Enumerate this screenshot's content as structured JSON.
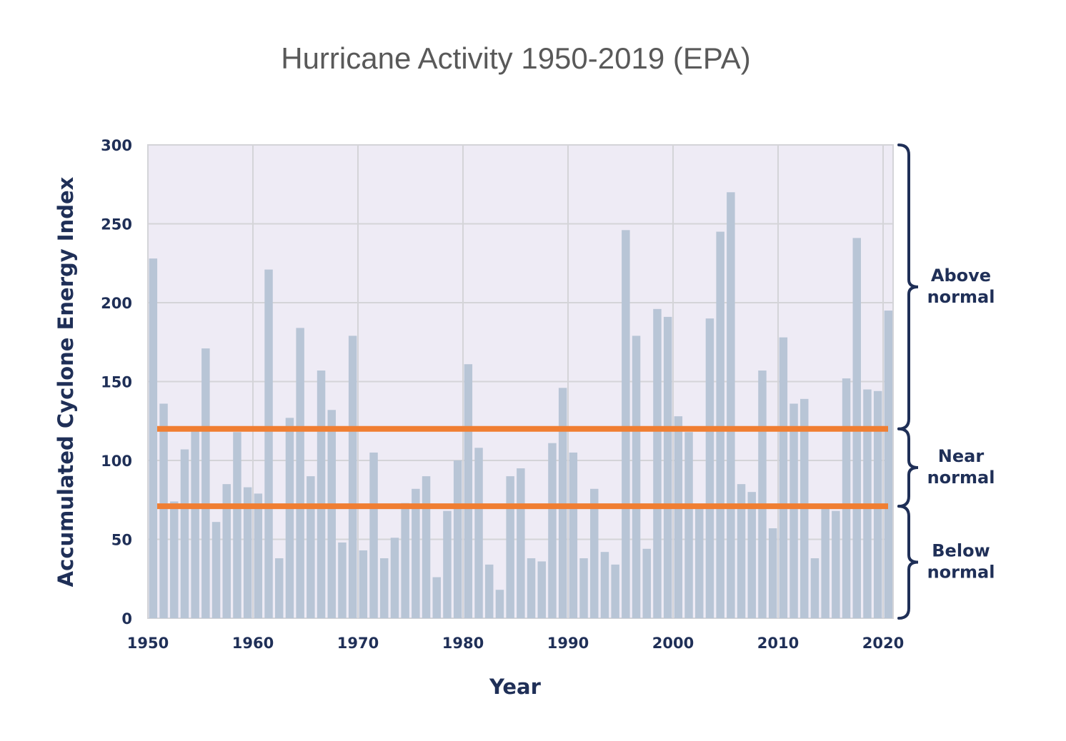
{
  "chart_data": {
    "type": "bar",
    "title": "Hurricane Activity 1950-2019 (EPA)",
    "xlabel": "Year",
    "ylabel": "Accumulated Cyclone Energy Index",
    "xlim": [
      1950,
      2021
    ],
    "ylim": [
      0,
      300
    ],
    "x_ticks": [
      1950,
      1960,
      1970,
      1980,
      1990,
      2000,
      2010,
      2020
    ],
    "y_ticks": [
      0,
      50,
      100,
      150,
      200,
      250,
      300
    ],
    "grid": true,
    "colors": {
      "bars": "#b8c5d6",
      "plot_background": "#eeebf5",
      "grid": "#d4d4d8",
      "threshold": "#f07e32",
      "text": "#1f2f57"
    },
    "thresholds": [
      120,
      71
    ],
    "categories": [
      1950,
      1951,
      1952,
      1953,
      1954,
      1955,
      1956,
      1957,
      1958,
      1959,
      1960,
      1961,
      1962,
      1963,
      1964,
      1965,
      1966,
      1967,
      1968,
      1969,
      1970,
      1971,
      1972,
      1973,
      1974,
      1975,
      1976,
      1977,
      1978,
      1979,
      1980,
      1981,
      1982,
      1983,
      1984,
      1985,
      1986,
      1987,
      1988,
      1989,
      1990,
      1991,
      1992,
      1993,
      1994,
      1995,
      1996,
      1997,
      1998,
      1999,
      2000,
      2001,
      2002,
      2003,
      2004,
      2005,
      2006,
      2007,
      2008,
      2009,
      2010,
      2011,
      2012,
      2013,
      2014,
      2015,
      2016,
      2017,
      2018,
      2019,
      2020
    ],
    "values": [
      228,
      136,
      74,
      107,
      120,
      171,
      61,
      85,
      118,
      83,
      79,
      221,
      38,
      127,
      184,
      90,
      157,
      132,
      48,
      179,
      43,
      105,
      38,
      51,
      73,
      82,
      90,
      26,
      68,
      100,
      161,
      108,
      34,
      18,
      90,
      95,
      38,
      36,
      111,
      146,
      105,
      38,
      82,
      42,
      34,
      246,
      179,
      44,
      196,
      191,
      128,
      118,
      72,
      190,
      245,
      270,
      85,
      80,
      157,
      57,
      178,
      136,
      139,
      38,
      72,
      68,
      152,
      241,
      145,
      144,
      195
    ],
    "ranges": [
      {
        "line1": "Above",
        "line2": "normal",
        "from": 120,
        "to": 300
      },
      {
        "line1": "Near",
        "line2": "normal",
        "from": 71,
        "to": 120
      },
      {
        "line1": "Below",
        "line2": "normal",
        "from": 0,
        "to": 71
      }
    ]
  }
}
